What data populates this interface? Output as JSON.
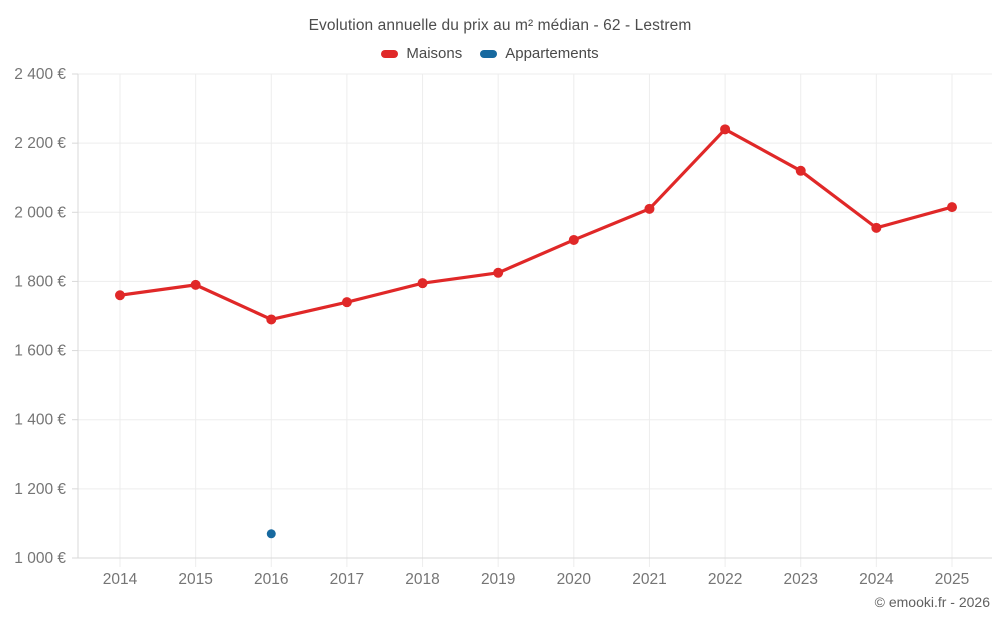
{
  "title": "Evolution annuelle du prix au m² médian - 62 - Lestrem",
  "watermark": "© emooki.fr - 2026",
  "colors": {
    "maisons": "#e02828",
    "appartements": "#17699f",
    "grid": "#ededed",
    "axis": "#d9d9d9",
    "tick_text": "#757575",
    "title_text": "#4d4d4d"
  },
  "legend": {
    "items": [
      {
        "id": "maisons",
        "label": "Maisons",
        "color": "#e02828"
      },
      {
        "id": "appartements",
        "label": "Appartements",
        "color": "#17699f"
      }
    ]
  },
  "chart_data": {
    "type": "line",
    "title": "Evolution annuelle du prix au m² médian - 62 - Lestrem",
    "x": [
      2014,
      2015,
      2016,
      2017,
      2018,
      2019,
      2020,
      2021,
      2022,
      2023,
      2024,
      2025
    ],
    "xtick_labels": [
      "2014",
      "2015",
      "2016",
      "2017",
      "2018",
      "2019",
      "2020",
      "2021",
      "2022",
      "2023",
      "2024",
      "2025"
    ],
    "series": [
      {
        "name": "Maisons",
        "color": "#e02828",
        "marker_radius": 5,
        "line_width": 3.2,
        "values": [
          1760,
          1790,
          1690,
          1740,
          1795,
          1825,
          1920,
          2010,
          2240,
          2120,
          1955,
          2015
        ]
      },
      {
        "name": "Appartements",
        "color": "#17699f",
        "marker_radius": 4.5,
        "line_width": 3.2,
        "values": [
          null,
          null,
          1070,
          null,
          null,
          null,
          null,
          null,
          null,
          null,
          null,
          null
        ]
      }
    ],
    "ylim": [
      1000,
      2400
    ],
    "yticks": [
      1000,
      1200,
      1400,
      1600,
      1800,
      2000,
      2200,
      2400
    ],
    "ytick_labels": [
      "1 000 €",
      "1 200 €",
      "1 400 €",
      "1 600 €",
      "1 800 €",
      "2 000 €",
      "2 200 €",
      "2 400 €"
    ],
    "xlabel": "",
    "ylabel": "",
    "grid": true,
    "legend_position": "top"
  }
}
